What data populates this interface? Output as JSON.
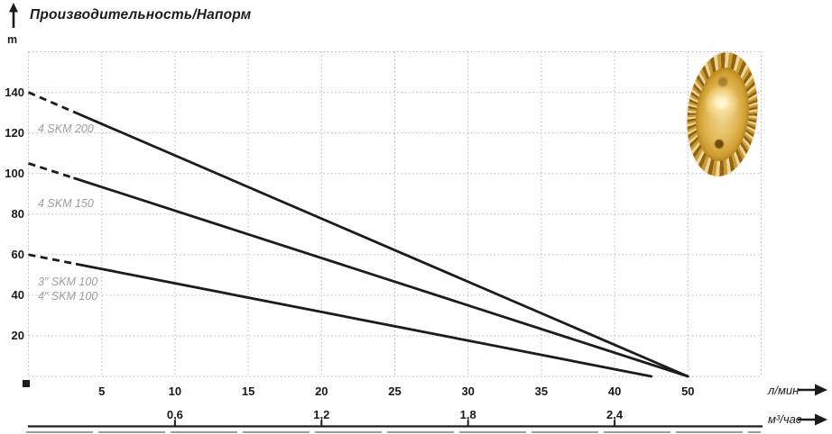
{
  "chart_data": {
    "type": "line",
    "title": "Производительность/Напорм",
    "ylabel": "m",
    "ylim": [
      0,
      160
    ],
    "y_ticks": [
      20,
      40,
      60,
      80,
      100,
      120,
      140
    ],
    "x_primary": {
      "label": "л/мин",
      "ticks": [
        5,
        10,
        15,
        20,
        25,
        30,
        35,
        40,
        50
      ]
    },
    "x_secondary": {
      "label": "м³/час",
      "ticks": [
        "0,6",
        "1,2",
        "1,8",
        "2,4"
      ],
      "tick_positions_lmin": [
        10,
        20,
        30,
        40
      ]
    },
    "x_layout": {
      "compress_after": 40,
      "compress_factor": 0.5,
      "note": "45 л/мин tick skipped; the 50 label sits on the 45 grid position"
    },
    "grid": true,
    "grid_style": "dotted",
    "line_color": "#1c1c1c",
    "grid_color": "#b6b6b6",
    "series": [
      {
        "name": "4 SKM 200",
        "points": [
          [
            0,
            140
          ],
          [
            50,
            0
          ]
        ],
        "dash_until": 3.5
      },
      {
        "name": "4 SKM 150",
        "points": [
          [
            0,
            105
          ],
          [
            50,
            0
          ]
        ],
        "dash_until": 3.5
      },
      {
        "name": "3″/4″ SKM 100",
        "points": [
          [
            0,
            60
          ],
          [
            45,
            0
          ]
        ],
        "dash_until": 3.5
      }
    ]
  },
  "series_labels": [
    {
      "text": "4 SKM 200"
    },
    {
      "text": "4 SKM 150"
    },
    {
      "text": "3″ SKM 100"
    },
    {
      "text": "4″ SKM 100"
    }
  ]
}
